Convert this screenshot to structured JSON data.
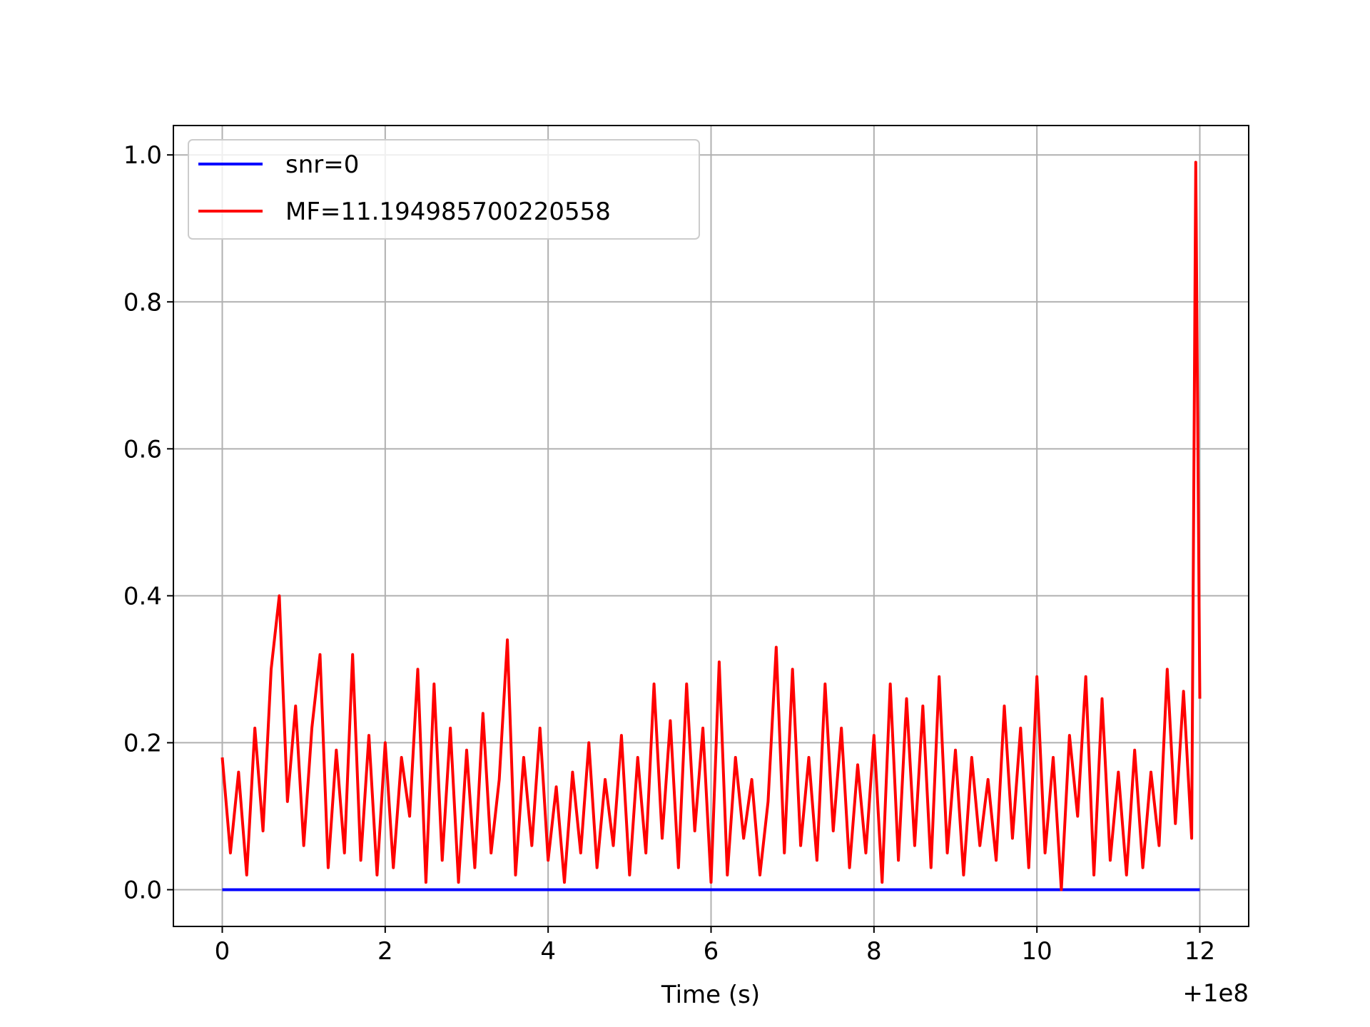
{
  "chart_data": {
    "type": "line",
    "xlabel": "Time (s)",
    "x_offset_label": "+1e8",
    "xlim": [
      -0.6,
      12.6
    ],
    "ylim": [
      -0.05,
      1.04
    ],
    "xticks": [
      0,
      2,
      4,
      6,
      8,
      10,
      12
    ],
    "yticks": [
      {
        "value": 0,
        "label": "0.0"
      },
      {
        "value": 0.2,
        "label": "0.2"
      },
      {
        "value": 0.4,
        "label": "0.4"
      },
      {
        "value": 0.6,
        "label": "0.6"
      },
      {
        "value": 0.8,
        "label": "0.8"
      },
      {
        "value": 1,
        "label": "1.0"
      }
    ],
    "grid": true,
    "legend": "upper left",
    "series": [
      {
        "name": "snr=0",
        "color": "#0000ff",
        "x": [
          0,
          12
        ],
        "values": [
          0,
          0
        ]
      },
      {
        "name": "MF=11.194985700220558",
        "color": "#ff0000",
        "x": [
          0,
          0.1,
          0.2,
          0.3,
          0.4,
          0.5,
          0.6,
          0.7,
          0.8,
          0.9,
          1,
          1.1,
          1.2,
          1.3,
          1.4,
          1.5,
          1.6,
          1.7,
          1.8,
          1.9,
          2,
          2.1,
          2.2,
          2.3,
          2.4,
          2.5,
          2.6,
          2.7,
          2.8,
          2.9,
          3,
          3.1,
          3.2,
          3.3,
          3.4,
          3.5,
          3.6,
          3.7,
          3.8,
          3.9,
          4,
          4.1,
          4.2,
          4.3,
          4.4,
          4.5,
          4.6,
          4.7,
          4.8,
          4.9,
          5,
          5.1,
          5.2,
          5.3,
          5.4,
          5.5,
          5.6,
          5.7,
          5.8,
          5.9,
          6,
          6.1,
          6.2,
          6.3,
          6.4,
          6.5,
          6.6,
          6.7,
          6.8,
          6.9,
          7,
          7.1,
          7.2,
          7.3,
          7.4,
          7.5,
          7.6,
          7.7,
          7.8,
          7.9,
          8,
          8.1,
          8.2,
          8.3,
          8.4,
          8.5,
          8.6,
          8.7,
          8.8,
          8.9,
          9,
          9.1,
          9.2,
          9.3,
          9.4,
          9.5,
          9.6,
          9.7,
          9.8,
          9.9,
          10,
          10.1,
          10.2,
          10.3,
          10.4,
          10.5,
          10.6,
          10.7,
          10.8,
          10.9,
          11,
          11.1,
          11.2,
          11.3,
          11.4,
          11.5,
          11.6,
          11.7,
          11.8,
          11.9,
          11.95,
          12
        ],
        "values": [
          0.18,
          0.05,
          0.16,
          0.02,
          0.22,
          0.08,
          0.3,
          0.4,
          0.12,
          0.25,
          0.06,
          0.22,
          0.32,
          0.03,
          0.19,
          0.05,
          0.32,
          0.04,
          0.21,
          0.02,
          0.2,
          0.03,
          0.18,
          0.1,
          0.3,
          0.01,
          0.28,
          0.04,
          0.22,
          0.01,
          0.19,
          0.03,
          0.24,
          0.05,
          0.15,
          0.34,
          0.02,
          0.18,
          0.06,
          0.22,
          0.04,
          0.14,
          0.01,
          0.16,
          0.05,
          0.2,
          0.03,
          0.15,
          0.06,
          0.21,
          0.02,
          0.18,
          0.05,
          0.28,
          0.07,
          0.23,
          0.03,
          0.28,
          0.08,
          0.22,
          0.01,
          0.31,
          0.02,
          0.18,
          0.07,
          0.15,
          0.02,
          0.12,
          0.33,
          0.05,
          0.3,
          0.06,
          0.18,
          0.04,
          0.28,
          0.08,
          0.22,
          0.03,
          0.17,
          0.05,
          0.21,
          0.01,
          0.28,
          0.04,
          0.26,
          0.06,
          0.25,
          0.03,
          0.29,
          0.05,
          0.19,
          0.02,
          0.18,
          0.06,
          0.15,
          0.04,
          0.25,
          0.07,
          0.22,
          0.03,
          0.29,
          0.05,
          0.18,
          0.0,
          0.21,
          0.1,
          0.29,
          0.02,
          0.26,
          0.04,
          0.16,
          0.02,
          0.19,
          0.03,
          0.16,
          0.06,
          0.3,
          0.09,
          0.27,
          0.07,
          0.99,
          0.26
        ]
      }
    ]
  }
}
